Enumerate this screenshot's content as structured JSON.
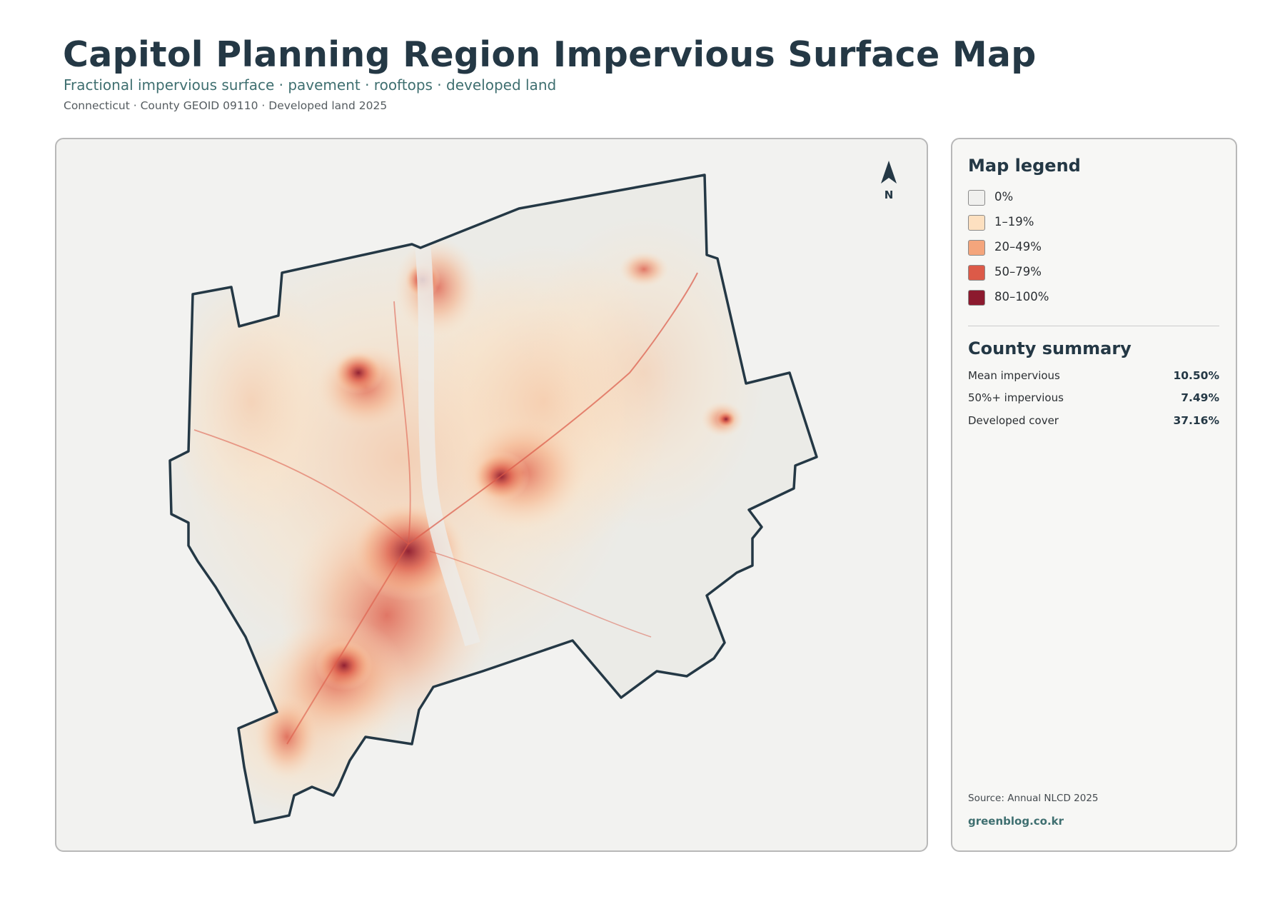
{
  "header": {
    "title": "Capitol Planning Region Impervious Surface Map",
    "subtitle": "Fractional impervious surface · pavement · rooftops · developed land",
    "meta": "Connecticut · County GEOID 09110 · Developed land 2025"
  },
  "map": {
    "north_label": "N",
    "boundary_color": "#243845",
    "background_fill": "#ebebe7"
  },
  "legend": {
    "title": "Map legend",
    "items": [
      {
        "label": "0%",
        "color": "#f0f0ee"
      },
      {
        "label": "1–19%",
        "color": "#fde0c0"
      },
      {
        "label": "20–49%",
        "color": "#f4a57c"
      },
      {
        "label": "50–79%",
        "color": "#dc5a48"
      },
      {
        "label": "80–100%",
        "color": "#8c1a2e"
      }
    ]
  },
  "summary": {
    "title": "County summary",
    "rows": [
      {
        "label": "Mean impervious",
        "value": "10.50%"
      },
      {
        "label": "50%+ impervious",
        "value": "7.49%"
      },
      {
        "label": "Developed cover",
        "value": "37.16%"
      }
    ]
  },
  "footer": {
    "source": "Source: Annual NLCD 2025",
    "website": "greenblog.co.kr"
  }
}
